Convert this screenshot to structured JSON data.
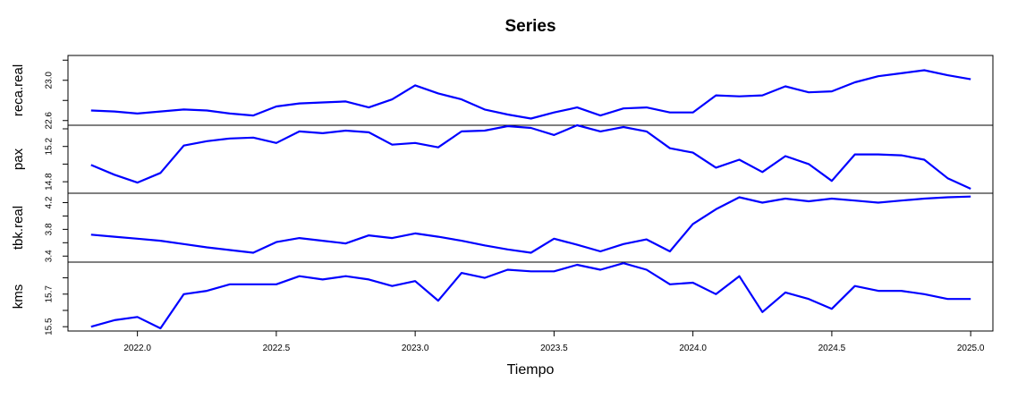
{
  "chart_data": {
    "type": "line",
    "title": "Series",
    "xlabel": "Tiempo",
    "x_ticks": [
      2022.0,
      2022.5,
      2023.0,
      2023.5,
      2024.0,
      2024.5,
      2025.0
    ],
    "x_tick_labels": [
      "2022.0",
      "2022.5",
      "2023.0",
      "2023.5",
      "2024.0",
      "2024.5",
      "2025.0"
    ],
    "xlim": [
      2021.75,
      2025.08
    ],
    "line_color": "#0000ff",
    "x": [
      2021.833,
      2021.917,
      2022.0,
      2022.083,
      2022.167,
      2022.25,
      2022.333,
      2022.417,
      2022.5,
      2022.583,
      2022.667,
      2022.75,
      2022.833,
      2022.917,
      2023.0,
      2023.083,
      2023.167,
      2023.25,
      2023.333,
      2023.417,
      2023.5,
      2023.583,
      2023.667,
      2023.75,
      2023.833,
      2023.917,
      2024.0,
      2024.083,
      2024.167,
      2024.25,
      2024.333,
      2024.417,
      2024.5,
      2024.583,
      2024.667,
      2024.75,
      2024.833,
      2024.917,
      2025.0
    ],
    "panels": [
      {
        "ylabel": "reca.real",
        "ylim": [
          22.58,
          23.22
        ],
        "y_ticks": [
          22.6,
          22.8,
          23.0,
          23.2
        ],
        "y_tick_labels": [
          "22.6",
          "",
          "23.0",
          ""
        ],
        "values": [
          22.7,
          22.69,
          22.67,
          22.69,
          22.71,
          22.7,
          22.67,
          22.65,
          22.74,
          22.77,
          22.78,
          22.79,
          22.73,
          22.81,
          22.95,
          22.87,
          22.81,
          22.71,
          22.66,
          22.62,
          22.68,
          22.73,
          22.65,
          22.72,
          22.73,
          22.68,
          22.68,
          22.85,
          22.84,
          22.85,
          22.94,
          22.88,
          22.89,
          22.98,
          23.04,
          23.07,
          23.1,
          23.05,
          23.01
        ]
      },
      {
        "ylabel": "pax",
        "ylim": [
          14.7,
          15.41
        ],
        "y_ticks": [
          14.8,
          15.0,
          15.2,
          15.4
        ],
        "y_tick_labels": [
          "14.8",
          "",
          "15.2",
          ""
        ],
        "values": [
          14.99,
          14.88,
          14.79,
          14.9,
          15.21,
          15.26,
          15.29,
          15.3,
          15.24,
          15.37,
          15.35,
          15.38,
          15.36,
          15.22,
          15.24,
          15.19,
          15.37,
          15.38,
          15.43,
          15.41,
          15.33,
          15.44,
          15.37,
          15.42,
          15.37,
          15.18,
          15.13,
          14.96,
          15.05,
          14.91,
          15.09,
          15.0,
          14.81,
          15.11,
          15.11,
          15.1,
          15.05,
          14.84,
          14.72
        ]
      },
      {
        "ylabel": "tbk.real",
        "ylim": [
          3.35,
          4.3
        ],
        "y_ticks": [
          3.4,
          3.6,
          3.8,
          4.0,
          4.2
        ],
        "y_tick_labels": [
          "3.4",
          "",
          "3.8",
          "",
          "4.2"
        ],
        "values": [
          3.72,
          3.69,
          3.66,
          3.63,
          3.58,
          3.53,
          3.49,
          3.45,
          3.61,
          3.67,
          3.63,
          3.59,
          3.71,
          3.67,
          3.74,
          3.69,
          3.63,
          3.56,
          3.5,
          3.45,
          3.66,
          3.57,
          3.47,
          3.58,
          3.65,
          3.47,
          3.88,
          4.1,
          4.28,
          4.2,
          4.26,
          4.22,
          4.26,
          4.23,
          4.2,
          4.23,
          4.26,
          4.28,
          4.29
        ]
      },
      {
        "ylabel": "kms",
        "ylim": [
          15.49,
          15.88
        ],
        "y_ticks": [
          15.5,
          15.6,
          15.7,
          15.8,
          15.9
        ],
        "y_tick_labels": [
          "15.5",
          "",
          "15.7",
          "",
          "15.9"
        ],
        "values": [
          15.5,
          15.54,
          15.56,
          15.49,
          15.7,
          15.72,
          15.76,
          15.76,
          15.76,
          15.81,
          15.79,
          15.81,
          15.79,
          15.75,
          15.78,
          15.66,
          15.83,
          15.8,
          15.85,
          15.84,
          15.84,
          15.88,
          15.85,
          15.89,
          15.85,
          15.76,
          15.77,
          15.7,
          15.81,
          15.59,
          15.71,
          15.67,
          15.61,
          15.75,
          15.72,
          15.72,
          15.7,
          15.67,
          15.67
        ]
      }
    ]
  }
}
